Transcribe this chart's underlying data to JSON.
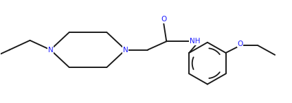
{
  "bg_color": "#ffffff",
  "line_color": "#1a1a1a",
  "label_color": "#1a1aff",
  "line_width": 1.4,
  "font_size": 7.5,
  "fig_width": 4.25,
  "fig_height": 1.5,
  "dpi": 100,
  "xlim": [
    0,
    8.5
  ],
  "ylim": [
    0,
    3.0
  ]
}
